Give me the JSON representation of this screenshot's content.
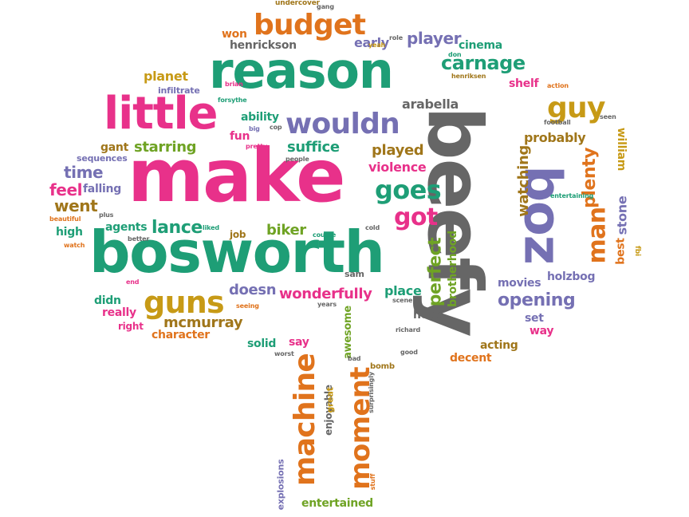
{
  "palette": {
    "pink": "#e8318a",
    "teal": "#1e9e76",
    "orange": "#e0731c",
    "purple": "#7570b3",
    "gold": "#c79a16",
    "green": "#6fa324",
    "brown": "#a0761a",
    "gray": "#666666"
  },
  "words": [
    {
      "text": "make",
      "color": "pink"
    },
    {
      "text": "beefy",
      "color": "gray"
    },
    {
      "text": "bosworth",
      "color": "teal"
    },
    {
      "text": "reason",
      "color": "teal"
    },
    {
      "text": "little",
      "color": "pink"
    },
    {
      "text": "boz",
      "color": "purple"
    },
    {
      "text": "budget",
      "color": "orange"
    },
    {
      "text": "wouldn",
      "color": "purple"
    },
    {
      "text": "guns",
      "color": "gold"
    },
    {
      "text": "machine",
      "color": "orange"
    },
    {
      "text": "moment",
      "color": "orange"
    },
    {
      "text": "man",
      "color": "orange"
    },
    {
      "text": "guy",
      "color": "gold"
    },
    {
      "text": "goes",
      "color": "teal"
    },
    {
      "text": "got",
      "color": "pink"
    },
    {
      "text": "carnage",
      "color": "teal"
    },
    {
      "text": "player",
      "color": "purple"
    },
    {
      "text": "plenty",
      "color": "orange"
    },
    {
      "text": "perfect",
      "color": "green"
    },
    {
      "text": "lance",
      "color": "teal"
    },
    {
      "text": "opening",
      "color": "purple"
    },
    {
      "text": "went",
      "color": "brown"
    },
    {
      "text": "time",
      "color": "purple"
    },
    {
      "text": "feel",
      "color": "pink"
    },
    {
      "text": "starring",
      "color": "green"
    },
    {
      "text": "suffice",
      "color": "teal"
    },
    {
      "text": "played",
      "color": "brown"
    },
    {
      "text": "violence",
      "color": "pink"
    },
    {
      "text": "watching",
      "color": "brown"
    },
    {
      "text": "biker",
      "color": "green"
    },
    {
      "text": "doesn",
      "color": "purple"
    },
    {
      "text": "wonderfully",
      "color": "pink"
    },
    {
      "text": "mcmurray",
      "color": "brown"
    },
    {
      "text": "place",
      "color": "teal"
    },
    {
      "text": "brotherhood",
      "color": "green"
    },
    {
      "text": "early",
      "color": "purple"
    },
    {
      "text": "won",
      "color": "orange"
    },
    {
      "text": "henrickson",
      "color": "gray"
    },
    {
      "text": "planet",
      "color": "gold"
    },
    {
      "text": "cinema",
      "color": "teal"
    },
    {
      "text": "shelf",
      "color": "pink"
    },
    {
      "text": "probably",
      "color": "brown"
    },
    {
      "text": "william",
      "color": "gold"
    },
    {
      "text": "stone",
      "color": "purple"
    },
    {
      "text": "best",
      "color": "orange"
    },
    {
      "text": "ability",
      "color": "teal"
    },
    {
      "text": "arabella",
      "color": "gray"
    },
    {
      "text": "fun",
      "color": "pink"
    },
    {
      "text": "gant",
      "color": "brown"
    },
    {
      "text": "sequences",
      "color": "purple"
    },
    {
      "text": "falling",
      "color": "purple"
    },
    {
      "text": "agents",
      "color": "teal"
    },
    {
      "text": "high",
      "color": "teal"
    },
    {
      "text": "didn",
      "color": "teal"
    },
    {
      "text": "really",
      "color": "pink"
    },
    {
      "text": "right",
      "color": "pink"
    },
    {
      "text": "character",
      "color": "orange"
    },
    {
      "text": "solid",
      "color": "teal"
    },
    {
      "text": "say",
      "color": "pink"
    },
    {
      "text": "awesome",
      "color": "green"
    },
    {
      "text": "enjoyable",
      "color": "gray"
    },
    {
      "text": "explosions",
      "color": "purple"
    },
    {
      "text": "entertained",
      "color": "green"
    },
    {
      "text": "movies",
      "color": "purple"
    },
    {
      "text": "holzbog",
      "color": "purple"
    },
    {
      "text": "head",
      "color": "gray"
    },
    {
      "text": "set",
      "color": "purple"
    },
    {
      "text": "way",
      "color": "pink"
    },
    {
      "text": "acting",
      "color": "brown"
    },
    {
      "text": "decent",
      "color": "orange"
    },
    {
      "text": "job",
      "color": "brown"
    },
    {
      "text": "sam",
      "color": "gray"
    },
    {
      "text": "great",
      "color": "gold"
    },
    {
      "text": "bomb",
      "color": "brown"
    },
    {
      "text": "infiltrate",
      "color": "purple"
    },
    {
      "text": "undercover",
      "color": "brown"
    },
    {
      "text": "gang",
      "color": "gray"
    },
    {
      "text": "yeah",
      "color": "gold"
    },
    {
      "text": "role",
      "color": "gray"
    },
    {
      "text": "don",
      "color": "teal"
    },
    {
      "text": "henriksen",
      "color": "brown"
    },
    {
      "text": "action",
      "color": "orange"
    },
    {
      "text": "seen",
      "color": "gray"
    },
    {
      "text": "brian",
      "color": "pink"
    },
    {
      "text": "forsythe",
      "color": "teal"
    },
    {
      "text": "big",
      "color": "purple"
    },
    {
      "text": "cop",
      "color": "gray"
    },
    {
      "text": "pretty",
      "color": "pink"
    },
    {
      "text": "people",
      "color": "gray"
    },
    {
      "text": "football",
      "color": "gray"
    },
    {
      "text": "entertaining",
      "color": "teal"
    },
    {
      "text": "beautiful",
      "color": "orange"
    },
    {
      "text": "plus",
      "color": "gray"
    },
    {
      "text": "watch",
      "color": "orange"
    },
    {
      "text": "better",
      "color": "gray"
    },
    {
      "text": "liked",
      "color": "teal"
    },
    {
      "text": "course",
      "color": "teal"
    },
    {
      "text": "cold",
      "color": "gray"
    },
    {
      "text": "end",
      "color": "pink"
    },
    {
      "text": "seeing",
      "color": "orange"
    },
    {
      "text": "years",
      "color": "gray"
    },
    {
      "text": "scene",
      "color": "gray"
    },
    {
      "text": "richard",
      "color": "gray"
    },
    {
      "text": "worst",
      "color": "gray"
    },
    {
      "text": "bad",
      "color": "gray"
    },
    {
      "text": "good",
      "color": "gray"
    },
    {
      "text": "surprisingly",
      "color": "gray"
    },
    {
      "text": "stuff",
      "color": "orange"
    },
    {
      "text": "fbi",
      "color": "gold"
    }
  ]
}
